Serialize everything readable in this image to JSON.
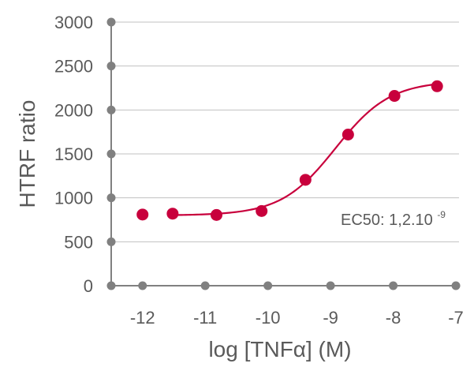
{
  "chart_data": {
    "type": "scatter",
    "xlabel": "log [TNFα] (M)",
    "ylabel": "HTRF ratio",
    "xlim": [
      -12.5,
      -6.95
    ],
    "ylim": [
      0,
      3000
    ],
    "x_ticks": [
      -12,
      -11,
      -10,
      -9,
      -8,
      -7
    ],
    "x_tick_labels": [
      "-12",
      "-11",
      "-10",
      "-9",
      "-8",
      "-7"
    ],
    "y_ticks": [
      0,
      500,
      1000,
      1500,
      2000,
      2500,
      3000
    ],
    "y_tick_labels": [
      "0",
      "500",
      "1000",
      "1500",
      "2000",
      "2500",
      "3000"
    ],
    "grid": "horizontal",
    "colors": {
      "series": "#c8003c",
      "axis": "#808080",
      "grid": "#c0c0c0",
      "text": "#5a5a5a"
    },
    "series": [
      {
        "points": [
          {
            "x": -12.0,
            "y": 810
          },
          {
            "x": -11.52,
            "y": 820
          },
          {
            "x": -10.82,
            "y": 805
          },
          {
            "x": -10.1,
            "y": 850
          },
          {
            "x": -9.4,
            "y": 1205
          },
          {
            "x": -8.72,
            "y": 1720
          },
          {
            "x": -7.98,
            "y": 2160
          },
          {
            "x": -7.3,
            "y": 2270
          }
        ],
        "fit": {
          "model": "4PL",
          "bottom": 800,
          "top": 2330,
          "log_ec50": -8.92,
          "hill": 1.0,
          "x_from": -11.52,
          "x_to": -7.3
        }
      }
    ],
    "annotation": {
      "text": "EC50: 1,2.10",
      "superscript": "-9"
    }
  }
}
